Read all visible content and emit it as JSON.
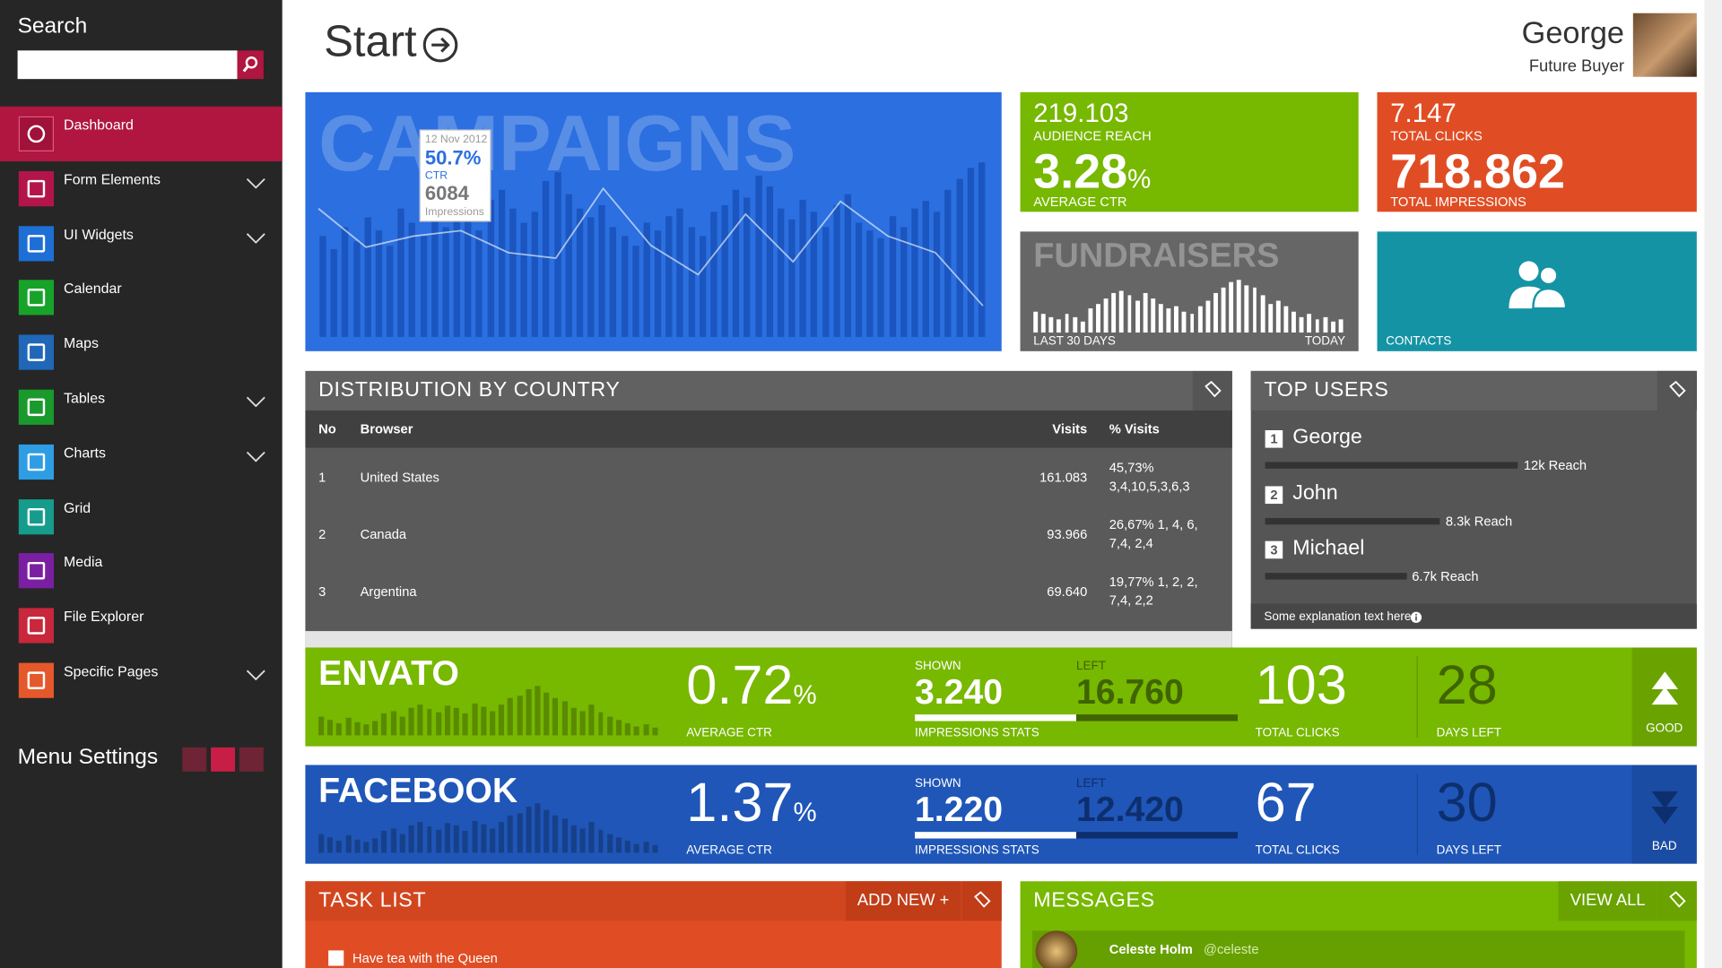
{
  "sidebar": {
    "search_label": "Search",
    "menu": [
      {
        "label": "Dashboard",
        "color": "#a0123a",
        "submenu": false
      },
      {
        "label": "Form Elements",
        "color": "#b3154a",
        "submenu": true
      },
      {
        "label": "UI Widgets",
        "color": "#1d6fd6",
        "submenu": true
      },
      {
        "label": "Calendar",
        "color": "#17a32a",
        "submenu": false
      },
      {
        "label": "Maps",
        "color": "#2067b8",
        "submenu": false
      },
      {
        "label": "Tables",
        "color": "#1a9a2c",
        "submenu": true
      },
      {
        "label": "Charts",
        "color": "#2e9de4",
        "submenu": true
      },
      {
        "label": "Grid",
        "color": "#159c8c",
        "submenu": false
      },
      {
        "label": "Media",
        "color": "#7b1fa2",
        "submenu": false
      },
      {
        "label": "File Explorer",
        "color": "#c8273c",
        "submenu": false
      },
      {
        "label": "Specific Pages",
        "color": "#e5582b",
        "submenu": true
      }
    ],
    "settings_label": "Menu Settings"
  },
  "header": {
    "title": "Start",
    "user_name": "George",
    "user_role": "Future Buyer"
  },
  "campaigns": {
    "title": "CAMPAIGNS",
    "tooltip": {
      "date": "12 Nov 2012",
      "ctr": "50.7%",
      "ctr_label": "CTR",
      "impressions": "6084",
      "impressions_label": "Impressions"
    },
    "bars": [
      55,
      48,
      60,
      52,
      65,
      58,
      50,
      70,
      62,
      55,
      68,
      60,
      72,
      65,
      58,
      75,
      80,
      70,
      62,
      68,
      85,
      90,
      78,
      70,
      65,
      72,
      60,
      55,
      50,
      62,
      58,
      66,
      70,
      60,
      55,
      68,
      72,
      80,
      76,
      88,
      82,
      70,
      64,
      75,
      68,
      60,
      72,
      78,
      62,
      58,
      54,
      66,
      60,
      70,
      74,
      68,
      80,
      86,
      92,
      95
    ],
    "line": [
      70,
      49,
      55,
      58,
      46,
      43,
      81,
      50,
      34,
      67,
      41,
      74,
      55,
      46,
      17
    ]
  },
  "reach_tile": {
    "value": "219.103",
    "label": "AUDIENCE REACH",
    "ctr": "3.28",
    "ctr_unit": "%",
    "ctr_label": "AVERAGE CTR"
  },
  "clicks_tile": {
    "value": "7.147",
    "label": "TOTAL CLICKS",
    "impressions": "718.862",
    "impressions_label": "TOTAL IMPRESSIONS"
  },
  "fundraisers": {
    "title": "FUNDRAISERS",
    "start_label": "LAST 30 DAYS",
    "end_label": "TODAY",
    "bars": [
      40,
      35,
      30,
      25,
      35,
      30,
      20,
      45,
      55,
      65,
      75,
      80,
      70,
      60,
      75,
      65,
      55,
      45,
      50,
      40,
      35,
      50,
      60,
      75,
      85,
      95,
      100,
      90,
      85,
      70,
      55,
      60,
      50,
      40,
      30,
      35,
      25,
      30,
      20,
      25
    ]
  },
  "contacts": {
    "label": "CONTACTS"
  },
  "distribution": {
    "title": "DISTRIBUTION BY COUNTRY",
    "columns": [
      "No",
      "Browser",
      "Visits",
      "% Visits"
    ],
    "rows": [
      [
        "1",
        "United States",
        "161.083",
        "45,73% 3,4,10,5,3,6,3"
      ],
      [
        "2",
        "Canada",
        "93.966",
        "26,67% 1, 4, 6, 7,4, 2,4"
      ],
      [
        "3",
        "Argentina",
        "69.640",
        "19,77% 1, 2, 2, 7,4, 2,2"
      ]
    ]
  },
  "top_users": {
    "title": "TOP USERS",
    "users": [
      {
        "rank": 1,
        "name": "George",
        "reach": 12,
        "reach_label": "12k Reach"
      },
      {
        "rank": 2,
        "name": "John",
        "reach": 8.3,
        "reach_label": "8.3k Reach"
      },
      {
        "rank": 3,
        "name": "Michael",
        "reach": 6.7,
        "reach_label": "6.7k Reach"
      }
    ],
    "note": "Some explanation text here"
  },
  "stats": [
    {
      "name": "ENVATO",
      "color": "#77b800",
      "side_color": "#6aa300",
      "dark": "#3f6400",
      "ctr": "0.72",
      "ctr_unit": "%",
      "ctr_label": "AVERAGE CTR",
      "shown_label": "SHOWN",
      "shown": "3.240",
      "left_label": "LEFT",
      "left": "16.760",
      "impressions_label": "IMPRESSIONS STATS",
      "clicks": "103",
      "clicks_label": "TOTAL CLICKS",
      "days": "28",
      "days_label": "DAYS LEFT",
      "status": "GOOD",
      "trend": "up",
      "bars": [
        30,
        25,
        20,
        28,
        22,
        18,
        24,
        35,
        40,
        30,
        45,
        50,
        42,
        38,
        48,
        44,
        36,
        52,
        46,
        40,
        50,
        60,
        65,
        75,
        80,
        70,
        60,
        55,
        45,
        40,
        50,
        38,
        30,
        25,
        20,
        15,
        18,
        12
      ]
    },
    {
      "name": "FACEBOOK",
      "color": "#1f56b8",
      "side_color": "#1b4ca3",
      "dark": "#0e2f6e",
      "ctr": "1.37",
      "ctr_unit": "%",
      "ctr_label": "AVERAGE CTR",
      "shown_label": "SHOWN",
      "shown": "1.220",
      "left_label": "LEFT",
      "left": "12.420",
      "impressions_label": "IMPRESSIONS STATS",
      "clicks": "67",
      "clicks_label": "TOTAL CLICKS",
      "days": "30",
      "days_label": "DAYS LEFT",
      "status": "BAD",
      "trend": "down",
      "bars": [
        30,
        25,
        20,
        28,
        22,
        18,
        24,
        35,
        40,
        30,
        45,
        50,
        42,
        38,
        48,
        44,
        36,
        52,
        46,
        40,
        50,
        60,
        65,
        75,
        80,
        70,
        60,
        55,
        45,
        40,
        50,
        38,
        30,
        25,
        20,
        15,
        18,
        12
      ]
    }
  ],
  "tasks": {
    "title": "TASK LIST",
    "add_label": "ADD NEW +",
    "items": [
      "Have tea with the Queen"
    ]
  },
  "messages": {
    "title": "MESSAGES",
    "view_label": "VIEW ALL",
    "items": [
      {
        "name": "Celeste Holm",
        "handle": "@celeste"
      }
    ]
  }
}
